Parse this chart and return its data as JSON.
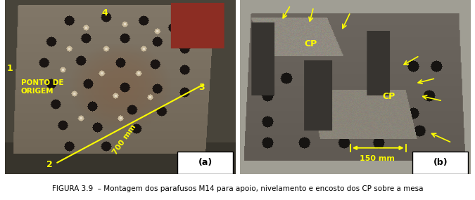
{
  "title": "FIGURA 3.9  – Montagem dos parafusos M14 para apoio, nivelamento e encosto dos CP sobre a mesa",
  "title_fontsize": 7.5,
  "title_color": "#000000",
  "background_color": "#ffffff",
  "fig_width": 6.75,
  "fig_height": 2.85,
  "panel_a": {
    "bg_color": [
      80,
      80,
      70
    ],
    "plate_color": [
      110,
      95,
      80
    ],
    "label": "(a)"
  },
  "panel_b": {
    "bg_color": [
      75,
      75,
      65
    ],
    "plate_color": [
      105,
      95,
      78
    ],
    "label": "(b)"
  },
  "yellow": "#ffff00",
  "white": "#ffffff",
  "black": "#000000"
}
